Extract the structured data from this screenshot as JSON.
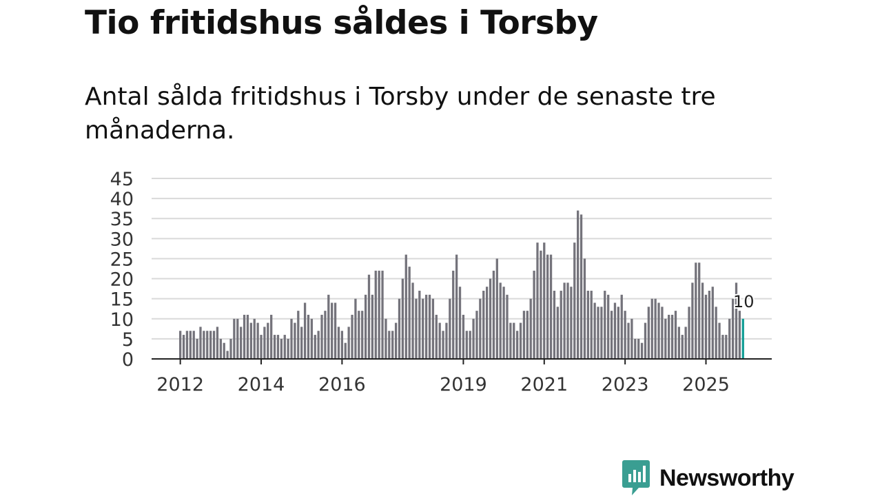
{
  "title": "Tio fritidshus såldes i Torsby",
  "subtitle": "Antal sålda fritidshus i Torsby under de senaste tre månaderna.",
  "brand": {
    "name": "Newsworthy",
    "color": "#3a9e92"
  },
  "colors": {
    "bar": "#74737b",
    "highlight": "#129e96",
    "grid": "#d9d9d9",
    "axis": "#222222"
  },
  "chart_data": {
    "type": "bar",
    "title": "Antal sålda fritidshus i Torsby under de senaste tre månaderna.",
    "xlabel": "",
    "ylabel": "",
    "ylim": [
      0,
      45
    ],
    "yticks": [
      "0",
      "5",
      "10",
      "15",
      "20",
      "25",
      "30",
      "35",
      "40",
      "45"
    ],
    "x_start": 2012.0,
    "x_step": 0.08333,
    "xticks": [
      {
        "label": "2012",
        "year": 2012.0
      },
      {
        "label": "2014",
        "year": 2014.0
      },
      {
        "label": "2016",
        "year": 2016.0
      },
      {
        "label": "2019",
        "year": 2019.0
      },
      {
        "label": "2021",
        "year": 2021.0
      },
      {
        "label": "2023",
        "year": 2023.0
      },
      {
        "label": "2025",
        "year": 2025.0
      }
    ],
    "values": [
      7,
      6,
      7,
      7,
      7,
      5,
      8,
      7,
      7,
      7,
      7,
      8,
      5,
      4,
      2,
      5,
      10,
      10,
      8,
      11,
      11,
      9,
      10,
      9,
      6,
      8,
      9,
      11,
      6,
      6,
      5,
      6,
      5,
      10,
      9,
      12,
      8,
      14,
      11,
      10,
      6,
      7,
      11,
      12,
      16,
      14,
      14,
      8,
      7,
      4,
      8,
      11,
      15,
      12,
      12,
      16,
      21,
      16,
      22,
      22,
      22,
      10,
      7,
      7,
      9,
      15,
      20,
      26,
      23,
      19,
      15,
      17,
      15,
      16,
      16,
      15,
      11,
      9,
      7,
      9,
      15,
      22,
      26,
      18,
      11,
      7,
      7,
      10,
      12,
      15,
      17,
      18,
      20,
      22,
      25,
      19,
      18,
      16,
      9,
      9,
      7,
      9,
      12,
      12,
      15,
      22,
      29,
      27,
      29,
      26,
      26,
      17,
      13,
      17,
      19,
      19,
      18,
      29,
      37,
      36,
      25,
      17,
      17,
      14,
      13,
      13,
      17,
      16,
      12,
      14,
      13,
      16,
      12,
      9,
      10,
      5,
      5,
      4,
      9,
      13,
      15,
      15,
      14,
      13,
      10,
      11,
      11,
      12,
      8,
      6,
      8,
      13,
      19,
      24,
      24,
      19,
      16,
      17,
      18,
      13,
      9,
      6,
      6,
      10,
      15,
      19,
      12,
      10
    ],
    "highlight": {
      "value": 10,
      "label": "10"
    }
  }
}
